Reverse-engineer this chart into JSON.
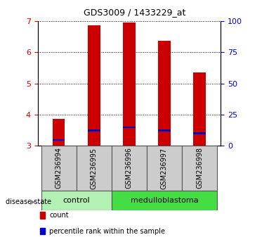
{
  "title": "GDS3009 / 1433229_at",
  "samples": [
    "GSM236994",
    "GSM236995",
    "GSM236996",
    "GSM236997",
    "GSM236998"
  ],
  "bar_bottoms": [
    3.0,
    3.0,
    3.0,
    3.0,
    3.0
  ],
  "bar_tops": [
    3.85,
    6.87,
    6.95,
    6.38,
    5.35
  ],
  "blue_positions": [
    3.18,
    3.49,
    3.59,
    3.49,
    3.4
  ],
  "ylim_left": [
    3,
    7
  ],
  "yticks_left": [
    3,
    4,
    5,
    6,
    7
  ],
  "yticks_right": [
    0,
    25,
    50,
    75,
    100
  ],
  "bar_color": "#cc0000",
  "blue_color": "#0000cc",
  "bar_width": 0.35,
  "tick_area_color": "#cccccc",
  "control_color": "#b3f0b3",
  "medulloblastoma_color": "#44dd44",
  "legend_count_label": "count",
  "legend_percentile_label": "percentile rank within the sample",
  "disease_state_label": "disease state",
  "left_tick_color": "#cc0000",
  "right_tick_color": "#0000cc",
  "title_fontsize": 9,
  "label_fontsize": 7,
  "group_fontsize": 8
}
